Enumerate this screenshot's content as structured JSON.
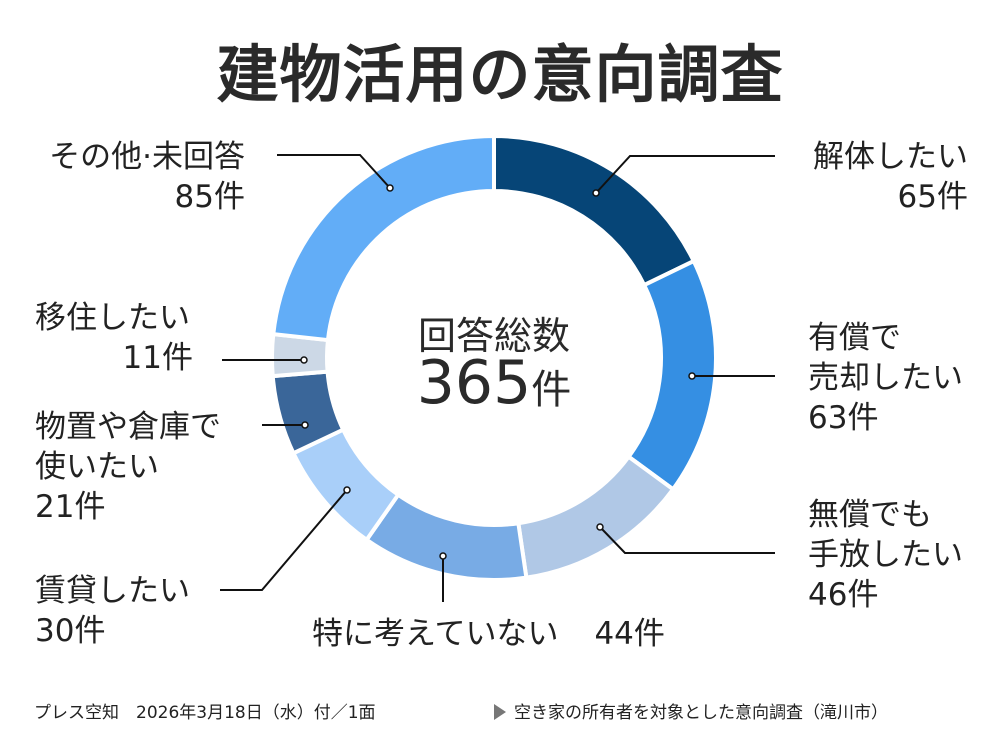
{
  "title": "建物活用の意向調査",
  "center": {
    "label": "回答総数",
    "total": "365",
    "unit": "件"
  },
  "segments": [
    {
      "name": "解体したい",
      "lines": [
        "解体したい"
      ],
      "count": "65件",
      "value": 65,
      "color": "#064577"
    },
    {
      "name": "有償で売却したい",
      "lines": [
        "有償で",
        "売却したい"
      ],
      "count": "63件",
      "value": 63,
      "color": "#358fe3"
    },
    {
      "name": "無償でも手放したい",
      "lines": [
        "無償でも",
        "手放したい"
      ],
      "count": "46件",
      "value": 46,
      "color": "#b0c8e6"
    },
    {
      "name": "特に考えていない",
      "lines": [
        "特に考えていない"
      ],
      "count": "44件",
      "value": 44,
      "color": "#78abe5"
    },
    {
      "name": "賃貸したい",
      "lines": [
        "賃貸したい"
      ],
      "count": "30件",
      "value": 30,
      "color": "#a9cff9"
    },
    {
      "name": "物置や倉庫で使いたい",
      "lines": [
        "物置や倉庫で",
        "使いたい"
      ],
      "count": "21件",
      "value": 21,
      "color": "#3a6699"
    },
    {
      "name": "移住したい",
      "lines": [
        "移住したい"
      ],
      "count": "11件",
      "value": 11,
      "color": "#ccd8e6"
    },
    {
      "name": "その他・未回答",
      "lines": [
        "その他·未回答"
      ],
      "count": "85件",
      "value": 85,
      "color": "#62adf7"
    }
  ],
  "footer": {
    "source": "プレス空知　2026年3月18日（水）付／1面",
    "note": "空き家の所有者を対象とした意向調査（滝川市）"
  },
  "chart_data": {
    "type": "pie",
    "title": "建物活用の意向調査",
    "subtitle": "回答総数 365件",
    "donut": true,
    "categories": [
      "解体したい",
      "有償で売却したい",
      "無償でも手放したい",
      "特に考えていない",
      "賃貸したい",
      "物置や倉庫で使いたい",
      "移住したい",
      "その他・未回答"
    ],
    "values": [
      65,
      63,
      46,
      44,
      30,
      21,
      11,
      85
    ],
    "unit": "件",
    "total": 365,
    "start_angle": "12 o'clock, clockwise",
    "colors": [
      "#064577",
      "#358fe3",
      "#b0c8e6",
      "#78abe5",
      "#a9cff9",
      "#3a6699",
      "#ccd8e6",
      "#62adf7"
    ],
    "source": "空き家の所有者を対象とした意向調査（滝川市）"
  }
}
